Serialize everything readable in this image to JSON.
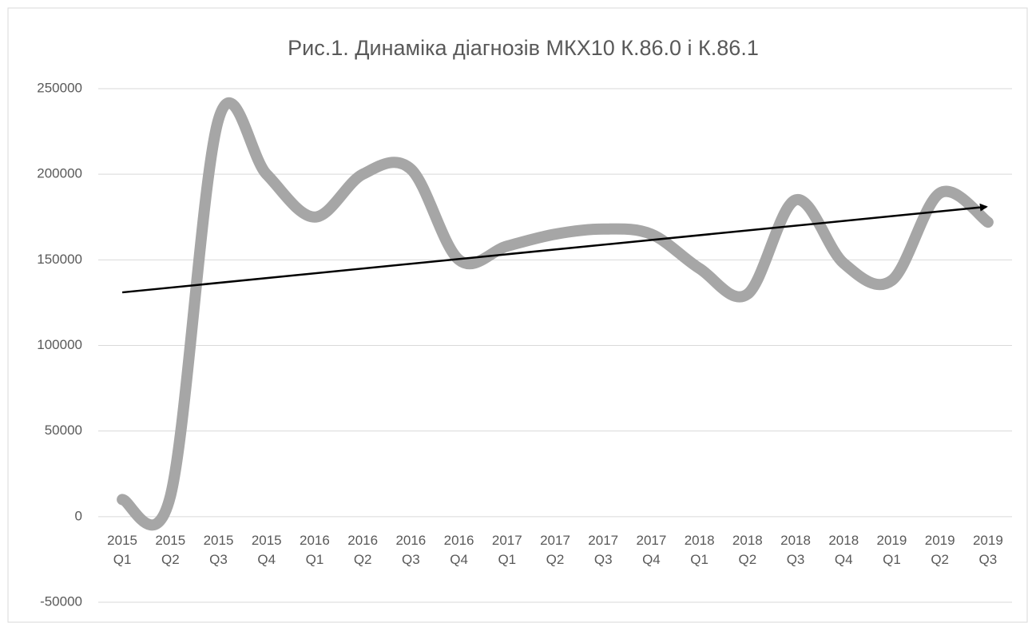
{
  "chart_data": {
    "type": "line",
    "title": "Рис.1. Динаміка діагнозів МКХ10 К.86.0 і К.86.1",
    "categories": [
      "2015 Q1",
      "2015 Q2",
      "2015 Q3",
      "2015 Q4",
      "2016 Q1",
      "2016 Q2",
      "2016 Q3",
      "2016 Q4",
      "2017 Q1",
      "2017 Q2",
      "2017 Q3",
      "2017 Q4",
      "2018 Q1",
      "2018 Q2",
      "2018 Q3",
      "2018 Q4",
      "2019 Q1",
      "2019 Q2",
      "2019 Q3"
    ],
    "values": [
      10000,
      12000,
      232000,
      200000,
      175000,
      200000,
      203000,
      150000,
      158000,
      165000,
      168000,
      165000,
      145000,
      130000,
      185000,
      148000,
      138000,
      189000,
      172000
    ],
    "color": "#a6a6a6",
    "smooth": true,
    "trendline": {
      "values": [
        131000,
        181000
      ],
      "color": "#000000"
    },
    "ylim": [
      -50000,
      250000
    ],
    "yticks": [
      -50000,
      0,
      50000,
      100000,
      150000,
      200000,
      250000
    ],
    "grid": true
  }
}
